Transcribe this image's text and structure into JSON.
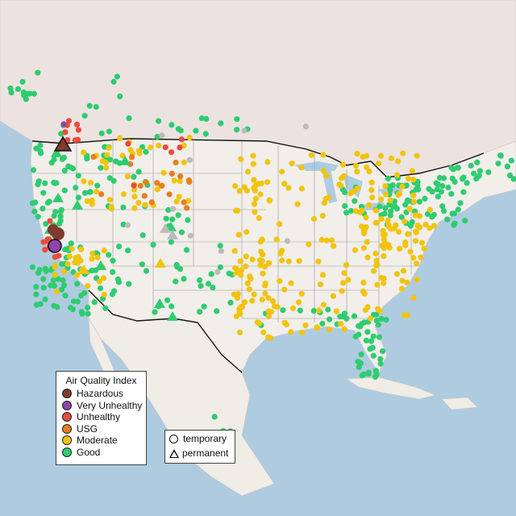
{
  "colors": {
    "hazardous": "#7e3b2e",
    "very_unhealthy": "#8e44ad",
    "unhealthy": "#e74c3c",
    "usg": "#e67e22",
    "moderate": "#f1c40f",
    "good": "#2ecc71",
    "unknown": "#bbbbbb"
  },
  "legend_aqi": {
    "title": "Air Quality Index",
    "items": [
      {
        "label": "Hazardous",
        "color": "#7e3b2e"
      },
      {
        "label": "Very Unhealthy",
        "color": "#8e44ad"
      },
      {
        "label": "Unhealthy",
        "color": "#e74c3c"
      },
      {
        "label": "USG",
        "color": "#e67e22"
      },
      {
        "label": "Moderate",
        "color": "#f1c40f"
      },
      {
        "label": "Good",
        "color": "#2ecc71"
      }
    ]
  },
  "legend_type": {
    "items": [
      {
        "label": "temporary",
        "shape": "circle"
      },
      {
        "label": "permanent",
        "shape": "triangle"
      }
    ]
  }
}
